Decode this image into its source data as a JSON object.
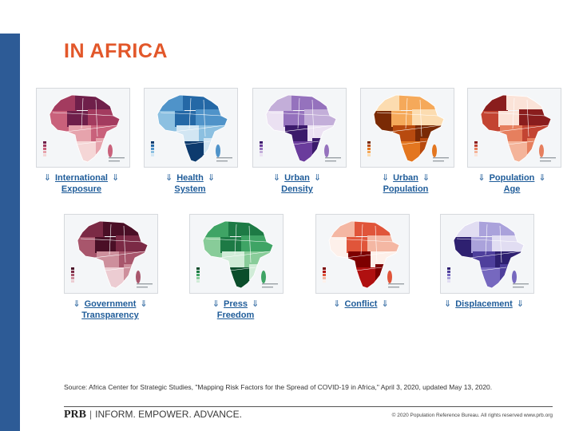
{
  "page": {
    "title": "IN AFRICA",
    "source_text": "Source: Africa Center for Strategic Studies, \"Mapping Risk Factors for the Spread of COVID-19 in Africa,\" April 3, 2020, updated May 13, 2020.",
    "footer_brand": "PRB",
    "footer_tagline": "INFORM. EMPOWER. ADVANCE.",
    "footer_copyright": "© 2020 Population Reference Bureau. All rights reserved www.prb.org",
    "arrow_glyph": "⇓"
  },
  "maps": [
    {
      "line1": "International",
      "line2": "Exposure",
      "palette": [
        "#6f1f4a",
        "#a33b5f",
        "#c9617b",
        "#e6a3ac",
        "#f5d6d6"
      ]
    },
    {
      "line1": "Health",
      "line2": "System",
      "palette": [
        "#0d3b6e",
        "#2468a6",
        "#4f93c9",
        "#8cc0e1",
        "#d2e6f3"
      ]
    },
    {
      "line1": "Urban",
      "line2": "Density",
      "palette": [
        "#3b1a6b",
        "#6a3c9c",
        "#9572bd",
        "#c3aed9",
        "#ebe1f2"
      ]
    },
    {
      "line1": "Urban",
      "line2": "Population",
      "palette": [
        "#7a2a05",
        "#b84a0f",
        "#e3761f",
        "#f5a95a",
        "#fcdcb0"
      ]
    },
    {
      "line1": "Population",
      "line2": "Age",
      "palette": [
        "#8a1d1d",
        "#c34432",
        "#e67f5e",
        "#f4b49a",
        "#fbe3d8"
      ]
    },
    {
      "line1": "Government",
      "line2": "Transparency",
      "palette": [
        "#4a0f26",
        "#7b2a45",
        "#a8566c",
        "#cd8f9c",
        "#ecccd2"
      ]
    },
    {
      "line1": "Press",
      "line2": "Freedom",
      "palette": [
        "#0b4d2b",
        "#1d7a45",
        "#3fa465",
        "#88cc99",
        "#d0ecd7"
      ]
    },
    {
      "line1": "Conflict",
      "line2": "",
      "palette": [
        "#7d0000",
        "#b01010",
        "#e0553a",
        "#f4b7a3",
        "#fdf0ea"
      ]
    },
    {
      "line1": "Displacement",
      "line2": "",
      "palette": [
        "#2e2070",
        "#4e3f9c",
        "#7668bf",
        "#aaa2db",
        "#e1ddf2"
      ]
    }
  ]
}
